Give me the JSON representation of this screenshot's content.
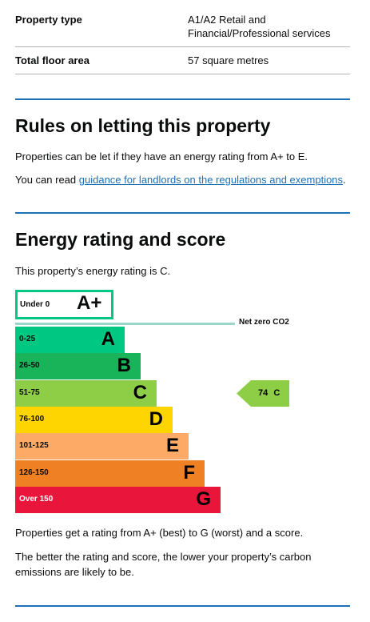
{
  "summary": [
    {
      "key": "Property type",
      "value": "A1/A2 Retail and Financial/Professional services"
    },
    {
      "key": "Total floor area",
      "value": "57 square metres"
    }
  ],
  "letting": {
    "heading": "Rules on letting this property",
    "para1": "Properties can be let if they have an energy rating from A+ to E.",
    "para2_prefix": "You can read ",
    "para2_link": "guidance for landlords on the regulations and exemptions",
    "para2_suffix": "."
  },
  "energy": {
    "heading": "Energy rating and score",
    "intro": "This property’s energy rating is C.",
    "footnote1": "Properties get a rating from A+ (best) to G (worst) and a score.",
    "footnote2": "The better the rating and score, the lower your property’s carbon emissions are likely to be."
  },
  "chart_data": {
    "type": "bar",
    "aplus": {
      "range": "Under 0",
      "letter": "A+",
      "color": "#00c781"
    },
    "net_zero_label": "Net zero CO2",
    "bands": [
      {
        "range": "0-25",
        "letter": "A",
        "color": "#00c781"
      },
      {
        "range": "26-50",
        "letter": "B",
        "color": "#19b459"
      },
      {
        "range": "51-75",
        "letter": "C",
        "color": "#8dce46"
      },
      {
        "range": "76-100",
        "letter": "D",
        "color": "#ffd500"
      },
      {
        "range": "101-125",
        "letter": "E",
        "color": "#fcaa65"
      },
      {
        "range": "126-150",
        "letter": "F",
        "color": "#ef8023"
      },
      {
        "range": "Over 150",
        "letter": "G",
        "color": "#e9153b"
      }
    ],
    "current": {
      "score": "74",
      "letter": "C",
      "band_index": 2,
      "color": "#8dce46"
    }
  }
}
